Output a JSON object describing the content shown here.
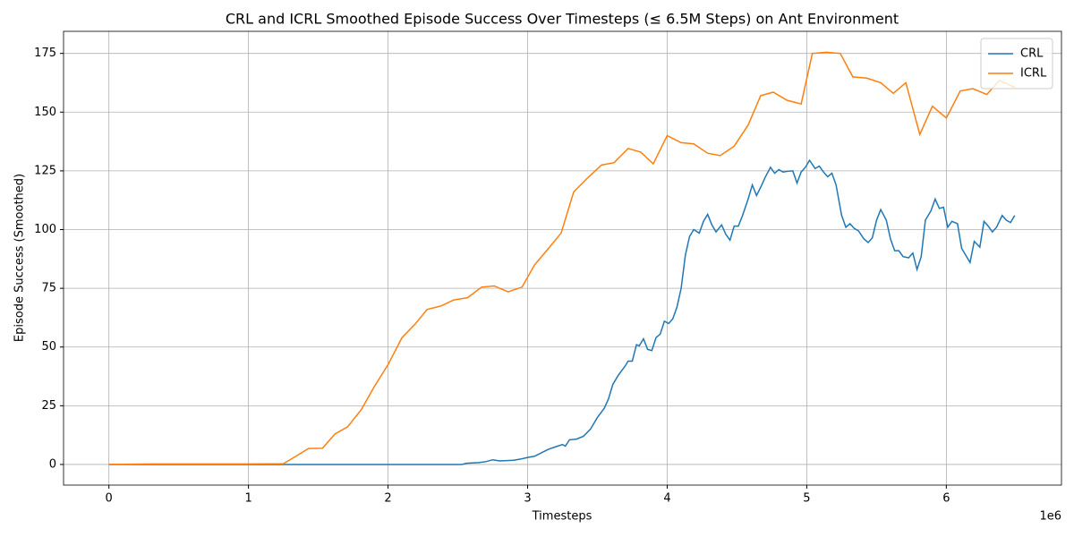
{
  "chart_data": {
    "type": "line",
    "title": "CRL and ICRL Smoothed Episode Success Over Timesteps (≤ 6.5M Steps) on Ant Environment",
    "x_label": "Timesteps",
    "y_label": "Episode Success (Smoothed)",
    "x_offset_label": "1e6",
    "xlim": [
      -0.325,
      6.825
    ],
    "xticks": [
      0,
      1,
      2,
      3,
      4,
      5,
      6
    ],
    "ylim": [
      -8.78,
      184.4
    ],
    "yticks": [
      0,
      25,
      50,
      75,
      100,
      125,
      150,
      175
    ],
    "grid": true,
    "legend": "upper right",
    "series": [
      {
        "name": "CRL",
        "color": "#1f77b4",
        "x": [
          0,
          1,
          2,
          2.53,
          2.56,
          2.65,
          2.7,
          2.75,
          2.8,
          2.9,
          2.95,
          3.0,
          3.05,
          3.1,
          3.15,
          3.2,
          3.25,
          3.27,
          3.3,
          3.35,
          3.4,
          3.45,
          3.5,
          3.55,
          3.58,
          3.61,
          3.65,
          3.7,
          3.72,
          3.75,
          3.78,
          3.8,
          3.83,
          3.86,
          3.89,
          3.92,
          3.95,
          3.98,
          4.01,
          4.04,
          4.07,
          4.1,
          4.13,
          4.16,
          4.19,
          4.23,
          4.26,
          4.29,
          4.32,
          4.35,
          4.39,
          4.42,
          4.45,
          4.48,
          4.51,
          4.54,
          4.58,
          4.61,
          4.64,
          4.67,
          4.7,
          4.74,
          4.77,
          4.8,
          4.83,
          4.86,
          4.9,
          4.93,
          4.96,
          4.99,
          5.02,
          5.06,
          5.09,
          5.12,
          5.15,
          5.18,
          5.21,
          5.25,
          5.28,
          5.31,
          5.34,
          5.37,
          5.41,
          5.44,
          5.47,
          5.5,
          5.53,
          5.57,
          5.6,
          5.63,
          5.66,
          5.69,
          5.73,
          5.76,
          5.79,
          5.82,
          5.85,
          5.89,
          5.92,
          5.95,
          5.98,
          6.01,
          6.04,
          6.08,
          6.11,
          6.14,
          6.17,
          6.2,
          6.24,
          6.27,
          6.3,
          6.33,
          6.36,
          6.4,
          6.43,
          6.46,
          6.49
        ],
        "values": [
          0,
          0,
          0,
          0,
          0.5,
          0.8,
          1.2,
          2,
          1.5,
          1.8,
          2.3,
          3,
          3.5,
          5,
          6.5,
          7.5,
          8.5,
          7.8,
          10.5,
          10.8,
          12,
          15,
          20,
          24,
          28,
          34,
          38,
          42,
          44,
          44,
          51,
          50.5,
          53.5,
          49,
          48.5,
          54,
          55.5,
          61,
          60,
          62,
          67,
          75,
          89,
          97,
          100,
          98.5,
          103.5,
          106.5,
          102,
          99,
          102,
          98,
          95.5,
          101.5,
          101.5,
          106,
          113,
          119,
          114.5,
          118,
          122,
          126.5,
          124,
          125.5,
          124.5,
          124.8,
          125,
          119.8,
          124.5,
          126.5,
          129.5,
          126,
          127,
          124.5,
          122.5,
          124,
          119,
          106,
          101,
          102.5,
          100.5,
          99.5,
          96,
          94.5,
          96.5,
          104,
          108.5,
          104,
          96,
          91,
          91,
          88.5,
          88,
          90,
          83,
          88.5,
          104,
          108,
          113,
          109,
          109.5,
          101,
          103.5,
          102.5,
          92,
          89,
          86,
          95,
          92.5,
          103.5,
          101.5,
          99,
          101,
          106,
          104,
          103,
          106
        ]
      },
      {
        "name": "ICRL",
        "color": "#ff7f0e",
        "x": [
          0,
          0.31,
          1.0,
          1.25,
          1.34,
          1.43,
          1.53,
          1.62,
          1.71,
          1.81,
          1.9,
          2.0,
          2.1,
          2.19,
          2.28,
          2.38,
          2.47,
          2.57,
          2.67,
          2.76,
          2.86,
          2.96,
          3.05,
          3.15,
          3.24,
          3.33,
          3.43,
          3.53,
          3.62,
          3.72,
          3.81,
          3.9,
          4.0,
          4.1,
          4.19,
          4.29,
          4.38,
          4.48,
          4.58,
          4.67,
          4.76,
          4.86,
          4.96,
          5.04,
          5.14,
          5.24,
          5.33,
          5.43,
          5.53,
          5.62,
          5.71,
          5.81,
          5.9,
          6.0,
          6.1,
          6.19,
          6.29,
          6.38,
          6.49
        ],
        "values": [
          0,
          0.2,
          0.2,
          0.3,
          3.5,
          6.8,
          6.9,
          13,
          16,
          23.5,
          33,
          42.5,
          54,
          59.5,
          66,
          67.5,
          70,
          71,
          75.5,
          76,
          73.5,
          75.5,
          85,
          92,
          98.5,
          116,
          122,
          127.5,
          128.5,
          134.5,
          133,
          128,
          140,
          137,
          136.5,
          132.5,
          131.5,
          135.5,
          144.5,
          157,
          158.5,
          155,
          153.5,
          175,
          175.5,
          175,
          165,
          164.5,
          162.5,
          158,
          162.5,
          140.5,
          152.5,
          147.5,
          159,
          160,
          157.5,
          163.5,
          160.5
        ]
      }
    ]
  }
}
